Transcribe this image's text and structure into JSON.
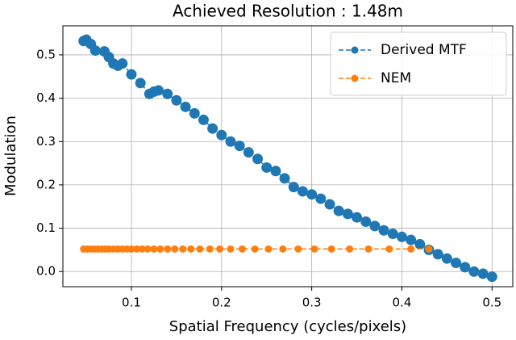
{
  "chart_data": {
    "type": "line",
    "title": "Achieved Resolution : 1.48m",
    "x_label": "Spatial Frequency (cycles/pixels)",
    "y_label": "Modulation",
    "xlim": [
      0.024,
      0.523
    ],
    "ylim": [
      -0.035,
      0.567
    ],
    "xticks": [
      0.1,
      0.2,
      0.3,
      0.4,
      0.5
    ],
    "yticks": [
      {
        "value": 0,
        "label": "0.0"
      },
      0.1,
      0.2,
      0.3,
      0.4,
      0.5
    ],
    "grid": true,
    "legend": "upper right",
    "series": [
      {
        "name": "Derived MTF",
        "color": "#1f77b4",
        "x": [
          0.047,
          0.05,
          0.055,
          0.06,
          0.07,
          0.075,
          0.08,
          0.085,
          0.09,
          0.1,
          0.11,
          0.12,
          0.125,
          0.13,
          0.14,
          0.15,
          0.16,
          0.17,
          0.18,
          0.19,
          0.2,
          0.21,
          0.22,
          0.23,
          0.24,
          0.25,
          0.26,
          0.27,
          0.28,
          0.29,
          0.3,
          0.31,
          0.32,
          0.33,
          0.34,
          0.35,
          0.36,
          0.37,
          0.38,
          0.39,
          0.4,
          0.41,
          0.42,
          0.43,
          0.44,
          0.45,
          0.46,
          0.47,
          0.48,
          0.49,
          0.5
        ],
        "values": [
          0.532,
          0.535,
          0.525,
          0.51,
          0.508,
          0.495,
          0.48,
          0.475,
          0.48,
          0.455,
          0.435,
          0.41,
          0.415,
          0.418,
          0.41,
          0.395,
          0.38,
          0.365,
          0.35,
          0.33,
          0.315,
          0.3,
          0.29,
          0.275,
          0.26,
          0.24,
          0.232,
          0.215,
          0.195,
          0.185,
          0.178,
          0.168,
          0.155,
          0.14,
          0.133,
          0.125,
          0.115,
          0.105,
          0.095,
          0.087,
          0.08,
          0.073,
          0.063,
          0.05,
          0.04,
          0.03,
          0.02,
          0.01,
          0.0,
          -0.005,
          -0.012
        ]
      },
      {
        "name": "NEM",
        "color": "#ff7f0e",
        "x": [
          0.047,
          0.051,
          0.055,
          0.059,
          0.063,
          0.067,
          0.071,
          0.075,
          0.08,
          0.085,
          0.09,
          0.095,
          0.1,
          0.106,
          0.112,
          0.118,
          0.125,
          0.132,
          0.14,
          0.148,
          0.157,
          0.166,
          0.176,
          0.187,
          0.198,
          0.21,
          0.223,
          0.237,
          0.252,
          0.268,
          0.285,
          0.303,
          0.322,
          0.342,
          0.363,
          0.386,
          0.41,
          0.43
        ],
        "values": [
          0.052,
          0.052,
          0.052,
          0.052,
          0.052,
          0.052,
          0.052,
          0.052,
          0.052,
          0.052,
          0.052,
          0.052,
          0.052,
          0.052,
          0.052,
          0.052,
          0.052,
          0.052,
          0.052,
          0.052,
          0.052,
          0.052,
          0.052,
          0.052,
          0.052,
          0.052,
          0.052,
          0.052,
          0.052,
          0.052,
          0.052,
          0.052,
          0.052,
          0.052,
          0.052,
          0.052,
          0.052,
          0.052
        ]
      }
    ]
  }
}
